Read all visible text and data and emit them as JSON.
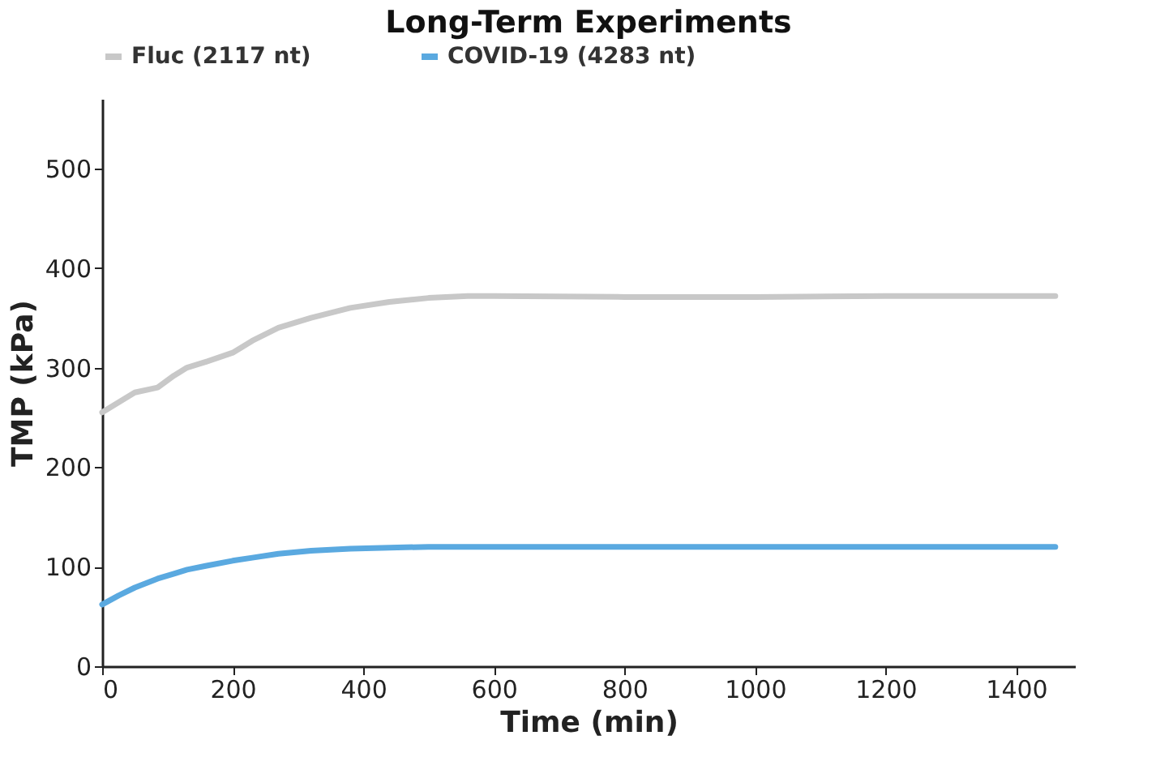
{
  "chart_data": {
    "type": "line",
    "title": "Long-Term Experiments",
    "xlabel": "Time (min)",
    "ylabel": "TMP (kPa)",
    "x": [
      0,
      25,
      50,
      85,
      110,
      130,
      160,
      200,
      230,
      270,
      320,
      380,
      440,
      500,
      560,
      600,
      800,
      1000,
      1200,
      1460
    ],
    "series": [
      {
        "name": "Fluc (2117 nt)",
        "color": "#c8c8c8",
        "values": [
          255,
          265,
          275,
          280,
          292,
          300,
          306,
          315,
          327,
          340,
          350,
          360,
          366,
          370,
          372,
          372,
          371,
          371,
          372,
          372
        ]
      },
      {
        "name": "COVID-19 (4283 nt)",
        "color": "#5aa9e0",
        "values": [
          62,
          71,
          79,
          88,
          93,
          97,
          101,
          106,
          109,
          113,
          116,
          118,
          119,
          120,
          120,
          120,
          120,
          120,
          120,
          120
        ]
      }
    ],
    "xlim": [
      0,
      1490
    ],
    "ylim": [
      0,
      570
    ],
    "xticks": [
      0,
      200,
      400,
      600,
      800,
      1000,
      1200,
      1400
    ],
    "yticks": [
      0,
      100,
      200,
      300,
      400,
      500
    ],
    "grid": false,
    "legend": "top",
    "marker": "none",
    "line_style": "solid"
  }
}
